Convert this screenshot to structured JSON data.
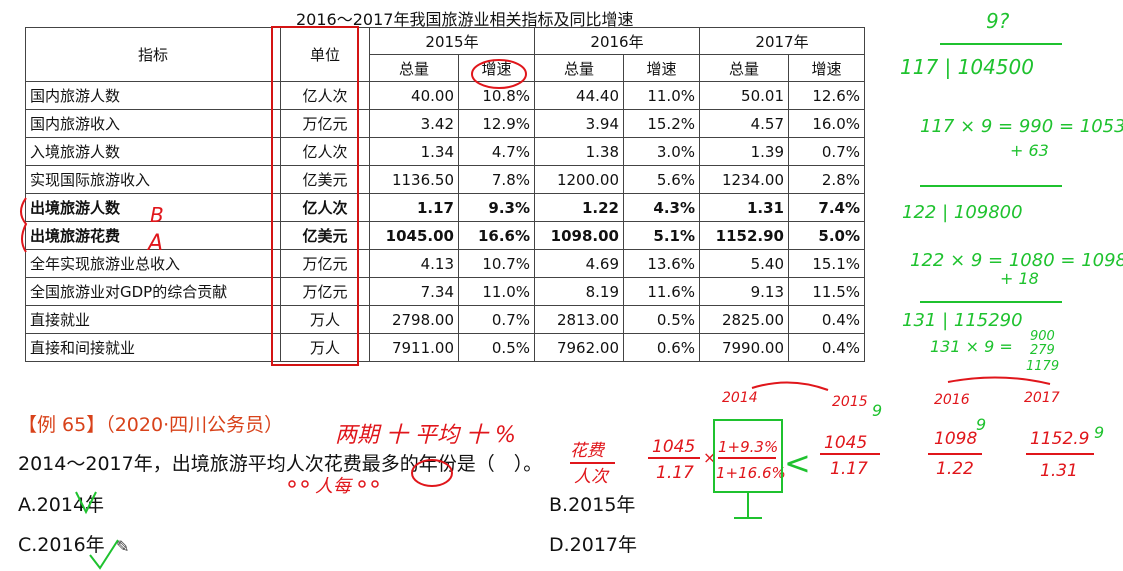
{
  "table": {
    "title": "2016～2017年我国旅游业相关指标及同比增速",
    "header": {
      "indicator": "指标",
      "unit": "单位",
      "years": [
        "2015年",
        "2016年",
        "2017年"
      ],
      "total": "总量",
      "rate": "增速"
    },
    "rows": [
      {
        "name": "国内旅游人数",
        "unit": "亿人次",
        "v2015": "40.00",
        "r2015": "10.8%",
        "v2016": "44.40",
        "r2016": "11.0%",
        "v2017": "50.01",
        "r2017": "12.6%",
        "bold": false
      },
      {
        "name": "国内旅游收入",
        "unit": "万亿元",
        "v2015": "3.42",
        "r2015": "12.9%",
        "v2016": "3.94",
        "r2016": "15.2%",
        "v2017": "4.57",
        "r2017": "16.0%",
        "bold": false
      },
      {
        "name": "入境旅游人数",
        "unit": "亿人次",
        "v2015": "1.34",
        "r2015": "4.7%",
        "v2016": "1.38",
        "r2016": "3.0%",
        "v2017": "1.39",
        "r2017": "0.7%",
        "bold": false
      },
      {
        "name": "实现国际旅游收入",
        "unit": "亿美元",
        "v2015": "1136.50",
        "r2015": "7.8%",
        "v2016": "1200.00",
        "r2016": "5.6%",
        "v2017": "1234.00",
        "r2017": "2.8%",
        "bold": false
      },
      {
        "name": "出境旅游人数",
        "unit": "亿人次",
        "v2015": "1.17",
        "r2015": "9.3%",
        "v2016": "1.22",
        "r2016": "4.3%",
        "v2017": "1.31",
        "r2017": "7.4%",
        "bold": true
      },
      {
        "name": "出境旅游花费",
        "unit": "亿美元",
        "v2015": "1045.00",
        "r2015": "16.6%",
        "v2016": "1098.00",
        "r2016": "5.1%",
        "v2017": "1152.90",
        "r2017": "5.0%",
        "bold": true
      },
      {
        "name": "全年实现旅游业总收入",
        "unit": "万亿元",
        "v2015": "4.13",
        "r2015": "10.7%",
        "v2016": "4.69",
        "r2016": "13.6%",
        "v2017": "5.40",
        "r2017": "15.1%",
        "bold": false
      },
      {
        "name": "全国旅游业对GDP的综合贡献",
        "unit": "万亿元",
        "v2015": "7.34",
        "r2015": "11.0%",
        "v2016": "8.19",
        "r2016": "11.6%",
        "v2017": "9.13",
        "r2017": "11.5%",
        "bold": false
      },
      {
        "name": "直接就业",
        "unit": "万人",
        "v2015": "2798.00",
        "r2015": "0.7%",
        "v2016": "2813.00",
        "r2016": "0.5%",
        "v2017": "2825.00",
        "r2017": "0.4%",
        "bold": false
      },
      {
        "name": "直接和间接就业",
        "unit": "万人",
        "v2015": "7911.00",
        "r2015": "0.5%",
        "v2016": "7962.00",
        "r2016": "0.6%",
        "v2017": "7990.00",
        "r2017": "0.4%",
        "bold": false
      }
    ]
  },
  "question": {
    "label": "【例 65】（2020·四川公务员）",
    "stem": "2014～2017年，出境旅游平均人次花费最多的年份是（　）。",
    "options": {
      "a": "A.2014年",
      "b": "B.2015年",
      "c": "C.2016年",
      "d": "D.2017年"
    }
  },
  "annotations": {
    "colors": {
      "red": "#e0161b",
      "green": "#1fc22f"
    },
    "red_text": {
      "mark_b": "B",
      "mark_a": "A",
      "method": "两期 十 平均 十 %",
      "per": "人每",
      "fraction_num": "花费",
      "fraction_den": "人次",
      "f2015_num": "1045",
      "f2015_den": "1.17",
      "f2016_num": "1098",
      "f2016_den": "1.22",
      "f2017_num": "1152.9",
      "f2017_den": "1.31",
      "growth_num": "1+9.3%",
      "growth_den": "1+16.6%",
      "year_2014": "2014",
      "year_2015": "2015",
      "year_2016": "2016",
      "year_2017": "2017"
    },
    "green_text": {
      "q_mark": "9?",
      "div1": "117 | 104500",
      "calc1a": "117 × 9 = 990 = 1053",
      "calc1b": "+ 63",
      "div2": "122 | 109800",
      "calc2a": "122 × 9 = 1080 = 1098",
      "calc2b": "+ 18",
      "div3": "131 | 115290",
      "calc3a": "131 × 9 =",
      "calc3b": "900",
      "calc3c": "279",
      "calc3d": "1179",
      "nine": "9",
      "lt": "<"
    }
  }
}
